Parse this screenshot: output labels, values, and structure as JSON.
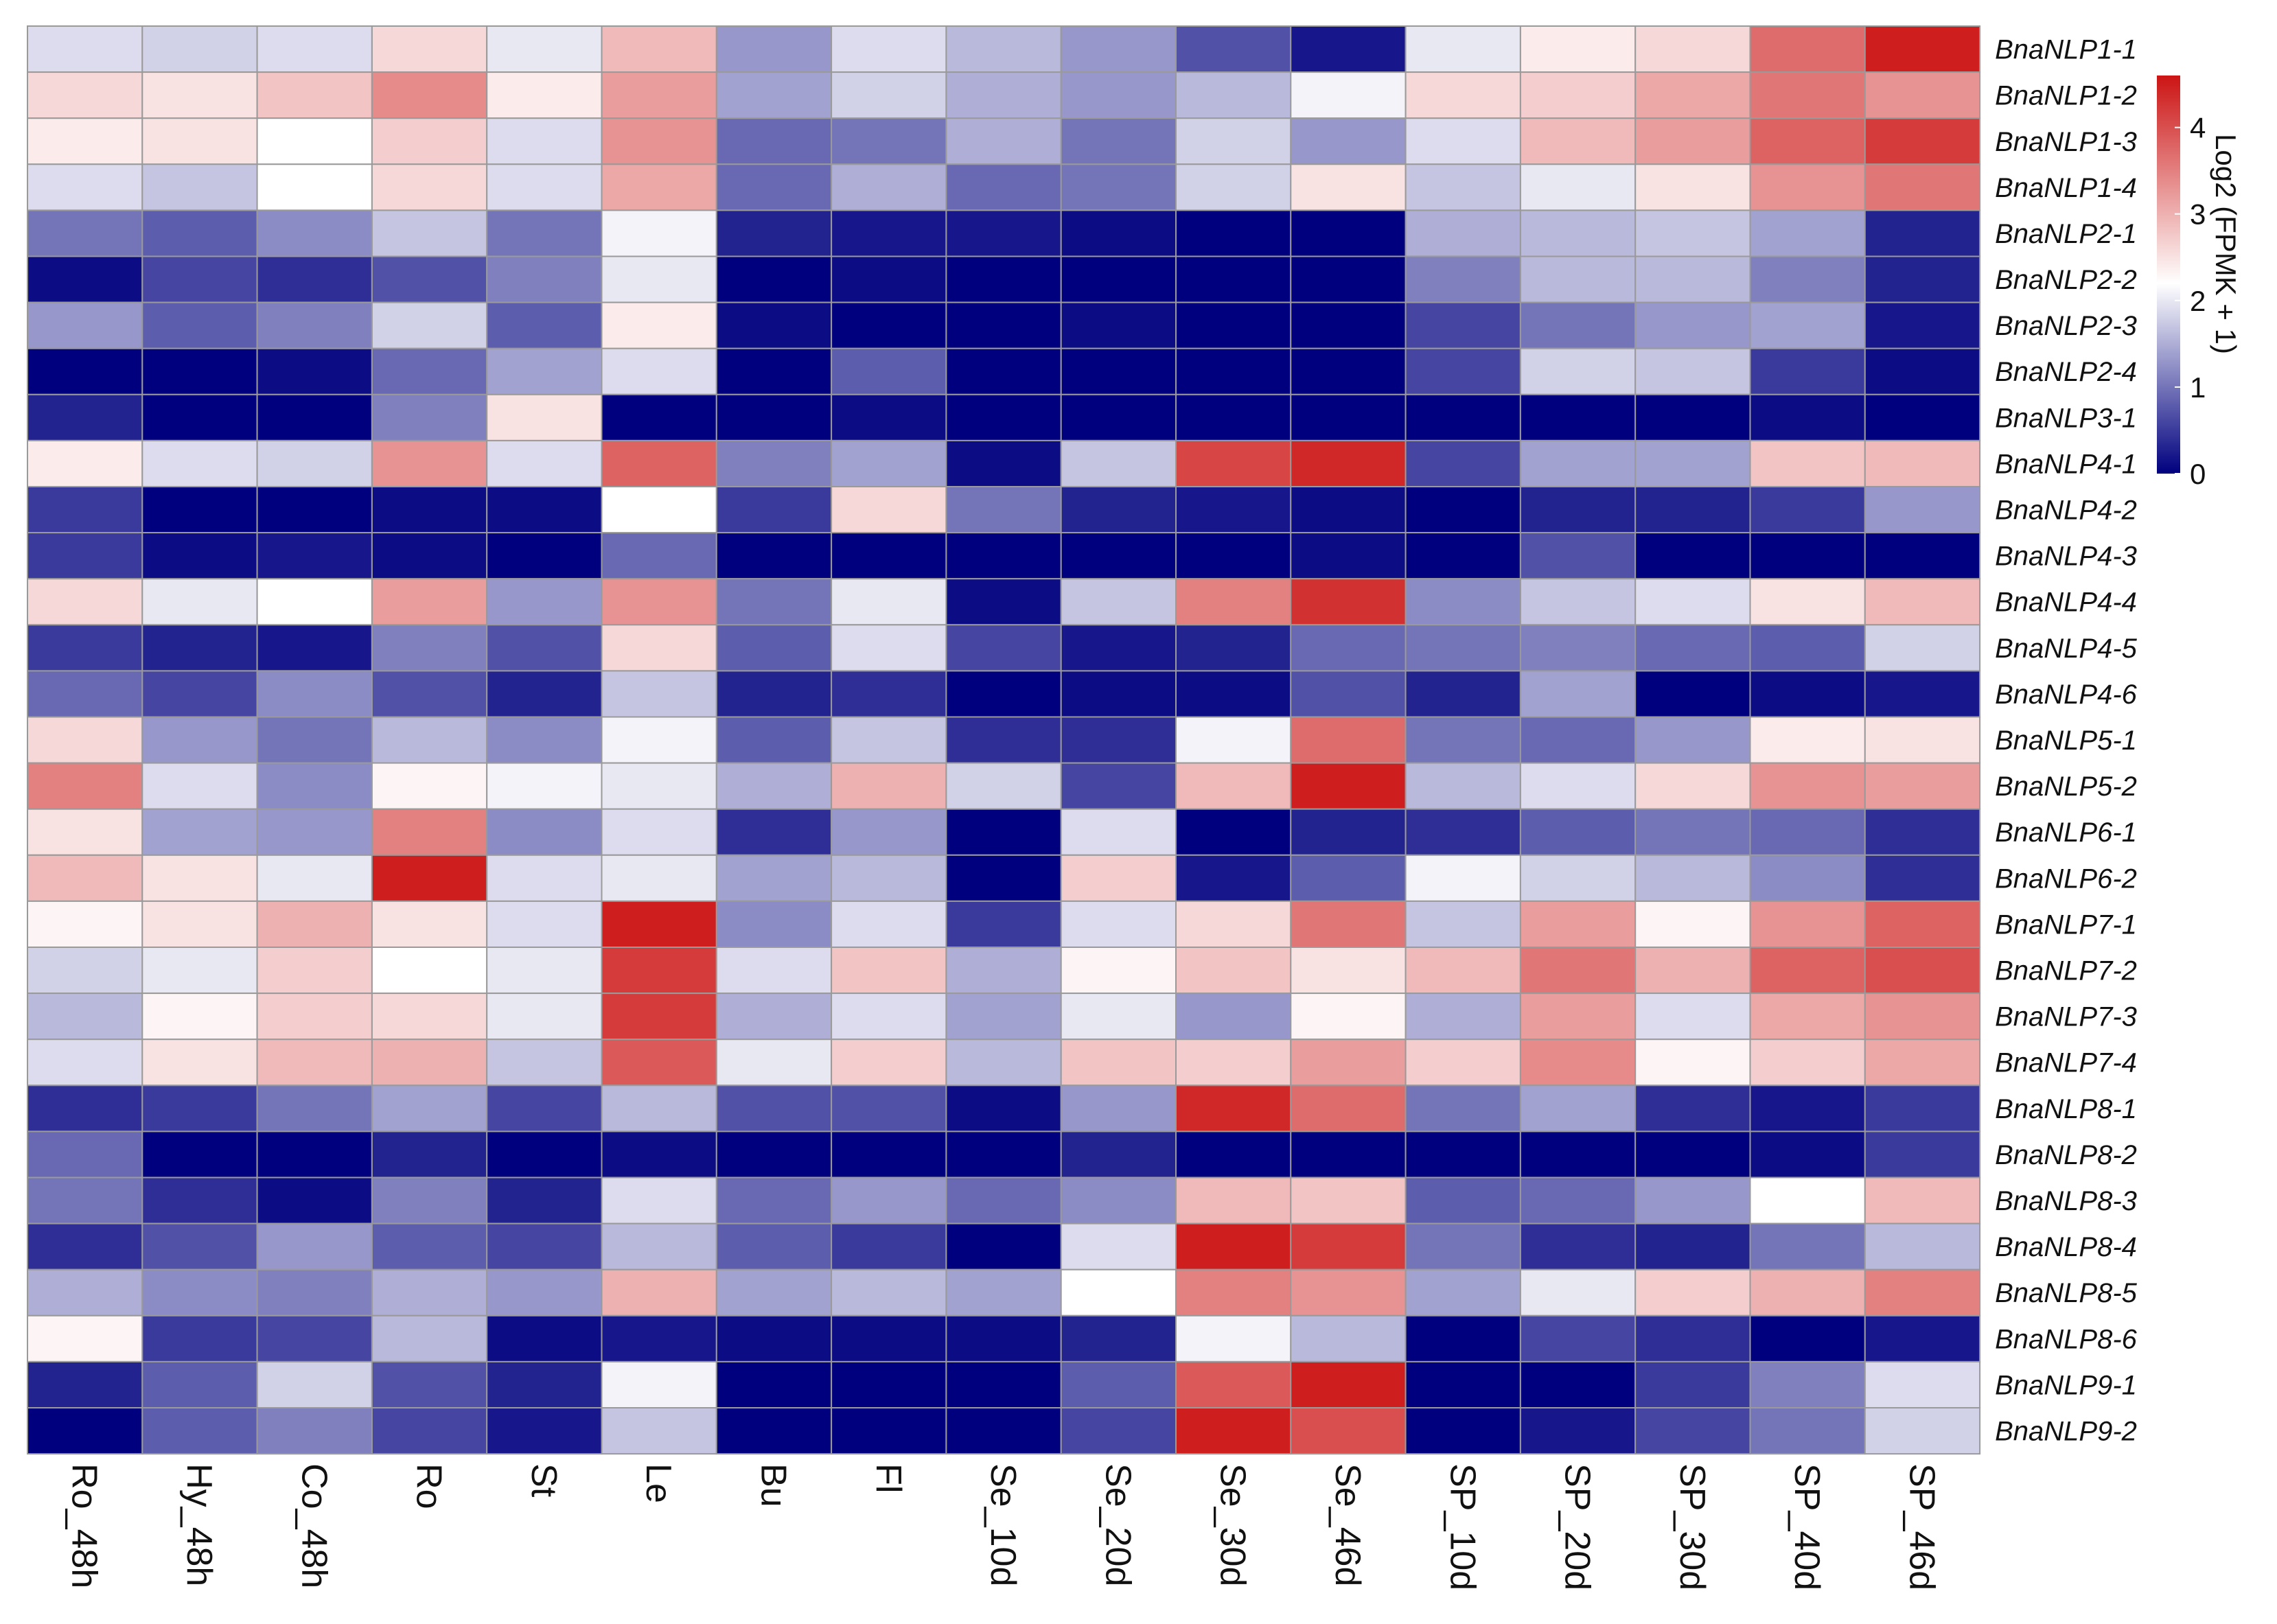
{
  "chart_data": {
    "type": "heatmap",
    "title": "",
    "legend": {
      "title": "Log2 (FPMK + 1)",
      "ticks": [
        0,
        1,
        2,
        3,
        4
      ],
      "range": [
        0,
        4.6
      ],
      "colors": {
        "low": "#00007f",
        "mid": "#ffffff",
        "high": "#cc1414"
      },
      "midpoint": 2.2
    },
    "columns": [
      "Ro_48h",
      "Hy_48h",
      "Co_48h",
      "Ro",
      "St",
      "Le",
      "Bu",
      "Fl",
      "Se_10d",
      "Se_20d",
      "Se_30d",
      "Se_46d",
      "SP_10d",
      "SP_20d",
      "SP_30d",
      "SP_40d",
      "SP_46d"
    ],
    "rows": [
      "BnaNLP1-1",
      "BnaNLP1-2",
      "BnaNLP1-3",
      "BnaNLP1-4",
      "BnaNLP2-1",
      "BnaNLP2-2",
      "BnaNLP2-3",
      "BnaNLP2-4",
      "BnaNLP3-1",
      "BnaNLP4-1",
      "BnaNLP4-2",
      "BnaNLP4-3",
      "BnaNLP4-4",
      "BnaNLP4-5",
      "BnaNLP4-6",
      "BnaNLP5-1",
      "BnaNLP5-2",
      "BnaNLP6-1",
      "BnaNLP6-2",
      "BnaNLP7-1",
      "BnaNLP7-2",
      "BnaNLP7-3",
      "BnaNLP7-4",
      "BnaNLP8-1",
      "BnaNLP8-2",
      "BnaNLP8-3",
      "BnaNLP8-4",
      "BnaNLP8-5",
      "BnaNLP8-6",
      "BnaNLP9-1",
      "BnaNLP9-2"
    ],
    "values": [
      [
        1.9,
        1.8,
        1.9,
        2.6,
        2.0,
        2.9,
        1.3,
        1.9,
        1.6,
        1.3,
        0.7,
        0.2,
        2.0,
        2.4,
        2.6,
        3.7,
        4.5
      ],
      [
        2.6,
        2.5,
        2.8,
        3.4,
        2.4,
        3.2,
        1.4,
        1.8,
        1.5,
        1.3,
        1.6,
        2.1,
        2.6,
        2.7,
        3.1,
        3.6,
        3.3
      ],
      [
        2.4,
        2.5,
        2.2,
        2.7,
        1.9,
        3.3,
        0.9,
        1.0,
        1.5,
        1.0,
        1.8,
        1.3,
        1.9,
        2.9,
        3.2,
        3.8,
        4.2
      ],
      [
        1.9,
        1.7,
        2.2,
        2.6,
        1.9,
        3.1,
        0.9,
        1.5,
        0.9,
        1.0,
        1.8,
        2.5,
        1.7,
        2.0,
        2.5,
        3.3,
        3.6
      ],
      [
        1.0,
        0.8,
        1.2,
        1.7,
        1.0,
        2.1,
        0.3,
        0.2,
        0.2,
        0.1,
        0.0,
        0.0,
        1.5,
        1.6,
        1.7,
        1.4,
        0.3
      ],
      [
        0.1,
        0.6,
        0.4,
        0.7,
        1.1,
        2.0,
        0.0,
        0.1,
        0.0,
        0.0,
        0.0,
        0.0,
        1.1,
        1.6,
        1.6,
        1.1,
        0.3
      ],
      [
        1.3,
        0.8,
        1.1,
        1.8,
        0.8,
        2.4,
        0.1,
        0.0,
        0.0,
        0.1,
        0.0,
        0.0,
        0.6,
        1.0,
        1.3,
        1.4,
        0.2
      ],
      [
        0.0,
        0.0,
        0.1,
        0.9,
        1.4,
        1.9,
        0.0,
        0.8,
        0.0,
        0.0,
        0.0,
        0.0,
        0.6,
        1.8,
        1.7,
        0.5,
        0.1
      ],
      [
        0.3,
        0.0,
        0.0,
        1.1,
        2.5,
        0.0,
        0.0,
        0.1,
        0.0,
        0.0,
        0.0,
        0.0,
        0.0,
        0.0,
        0.0,
        0.1,
        0.0
      ],
      [
        2.4,
        1.9,
        1.8,
        3.3,
        1.9,
        3.8,
        1.1,
        1.4,
        0.1,
        1.7,
        4.1,
        4.4,
        0.6,
        1.4,
        1.4,
        2.8,
        2.9
      ],
      [
        0.5,
        0.0,
        0.0,
        0.1,
        0.1,
        2.2,
        0.5,
        2.6,
        1.0,
        0.3,
        0.2,
        0.1,
        0.0,
        0.3,
        0.3,
        0.5,
        1.3
      ],
      [
        0.5,
        0.1,
        0.2,
        0.1,
        0.0,
        0.9,
        0.0,
        0.0,
        0.0,
        0.0,
        0.0,
        0.1,
        0.0,
        0.7,
        0.0,
        0.0,
        0.0
      ],
      [
        2.6,
        2.0,
        2.2,
        3.2,
        1.3,
        3.3,
        1.0,
        2.0,
        0.1,
        1.7,
        3.5,
        4.3,
        1.2,
        1.7,
        1.9,
        2.5,
        2.9
      ],
      [
        0.5,
        0.3,
        0.2,
        1.1,
        0.7,
        2.6,
        0.8,
        1.9,
        0.6,
        0.2,
        0.3,
        0.9,
        1.0,
        1.1,
        0.9,
        0.8,
        1.8
      ],
      [
        0.9,
        0.6,
        1.2,
        0.7,
        0.3,
        1.7,
        0.3,
        0.4,
        0.0,
        0.1,
        0.1,
        0.7,
        0.3,
        1.4,
        0.0,
        0.1,
        0.2
      ],
      [
        2.6,
        1.3,
        1.0,
        1.6,
        1.2,
        2.1,
        0.8,
        1.7,
        0.4,
        0.4,
        2.1,
        3.7,
        1.0,
        0.9,
        1.3,
        2.4,
        2.5
      ],
      [
        3.5,
        1.9,
        1.2,
        2.3,
        2.1,
        2.0,
        1.5,
        3.0,
        1.8,
        0.6,
        2.9,
        4.5,
        1.6,
        1.9,
        2.6,
        3.3,
        3.2
      ],
      [
        2.5,
        1.4,
        1.3,
        3.5,
        1.2,
        1.9,
        0.4,
        1.3,
        0.0,
        1.9,
        0.0,
        0.3,
        0.4,
        0.8,
        1.0,
        0.9,
        0.4
      ],
      [
        2.9,
        2.5,
        2.0,
        4.5,
        1.9,
        2.0,
        1.4,
        1.6,
        0.0,
        2.7,
        0.2,
        0.8,
        2.1,
        1.8,
        1.6,
        1.2,
        0.4
      ],
      [
        2.3,
        2.5,
        3.0,
        2.5,
        1.9,
        4.5,
        1.2,
        1.9,
        0.5,
        1.9,
        2.6,
        3.6,
        1.7,
        3.2,
        2.3,
        3.3,
        3.8
      ],
      [
        1.8,
        2.0,
        2.7,
        2.2,
        2.0,
        4.2,
        1.9,
        2.8,
        1.5,
        2.3,
        2.8,
        2.5,
        2.9,
        3.6,
        3.0,
        3.8,
        4.0
      ],
      [
        1.6,
        2.3,
        2.7,
        2.6,
        2.0,
        4.2,
        1.5,
        1.9,
        1.4,
        2.0,
        1.3,
        2.3,
        1.5,
        3.2,
        1.9,
        3.1,
        3.3
      ],
      [
        1.9,
        2.5,
        2.9,
        3.0,
        1.7,
        3.9,
        2.0,
        2.7,
        1.6,
        2.8,
        2.7,
        3.2,
        2.7,
        3.4,
        2.3,
        2.7,
        3.1
      ],
      [
        0.4,
        0.5,
        1.0,
        1.4,
        0.6,
        1.6,
        0.7,
        0.7,
        0.1,
        1.3,
        4.4,
        3.7,
        1.0,
        1.4,
        0.4,
        0.2,
        0.5
      ],
      [
        0.9,
        0.0,
        0.0,
        0.3,
        0.0,
        0.1,
        0.0,
        0.0,
        0.0,
        0.3,
        0.0,
        0.0,
        0.0,
        0.0,
        0.0,
        0.1,
        0.5
      ],
      [
        1.0,
        0.4,
        0.1,
        1.1,
        0.3,
        1.9,
        0.9,
        1.3,
        0.9,
        1.2,
        2.9,
        2.8,
        0.8,
        0.9,
        1.3,
        2.2,
        2.9
      ],
      [
        0.4,
        0.7,
        1.3,
        0.8,
        0.6,
        1.6,
        0.8,
        0.5,
        0.0,
        1.9,
        4.5,
        4.2,
        1.0,
        0.4,
        0.3,
        1.0,
        1.6
      ],
      [
        1.5,
        1.2,
        1.1,
        1.5,
        1.3,
        3.0,
        1.4,
        1.6,
        1.4,
        2.2,
        3.5,
        3.3,
        1.4,
        2.0,
        2.7,
        3.0,
        3.5
      ],
      [
        2.3,
        0.5,
        0.6,
        1.6,
        0.1,
        0.2,
        0.1,
        0.1,
        0.1,
        0.3,
        2.1,
        1.6,
        0.0,
        0.6,
        0.4,
        0.0,
        0.2
      ],
      [
        0.3,
        0.8,
        1.8,
        0.7,
        0.3,
        2.1,
        0.0,
        0.0,
        0.0,
        0.8,
        3.9,
        4.5,
        0.0,
        0.0,
        0.5,
        1.1,
        1.9
      ],
      [
        0.0,
        0.8,
        1.1,
        0.6,
        0.2,
        1.7,
        0.0,
        0.0,
        0.0,
        0.6,
        4.5,
        4.0,
        0.0,
        0.2,
        0.6,
        1.0,
        1.8
      ]
    ]
  }
}
